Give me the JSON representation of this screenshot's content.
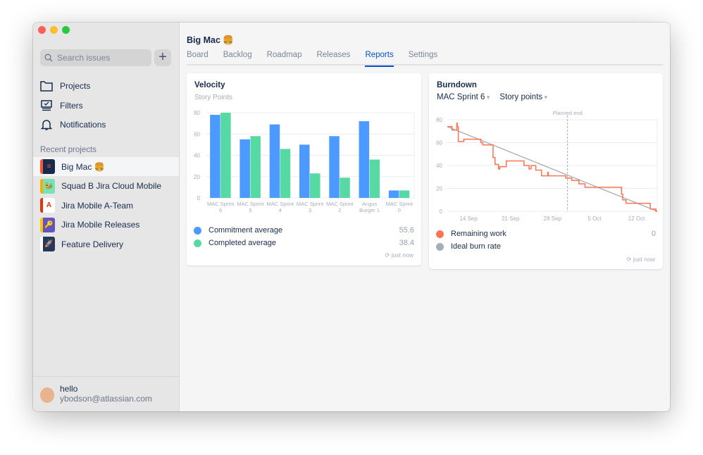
{
  "sidebar": {
    "search_placeholder": "Search issues",
    "add_label": "+",
    "nav": [
      {
        "label": "Projects",
        "icon": "folder-icon"
      },
      {
        "label": "Filters",
        "icon": "filter-monitor-icon"
      },
      {
        "label": "Notifications",
        "icon": "bell-icon"
      }
    ],
    "recent_title": "Recent projects",
    "projects": [
      {
        "label": "Big Mac 🍔",
        "color": "#172b4d",
        "accent": "#ff5630",
        "glyph": "≡"
      },
      {
        "label": "Squad B Jira Cloud Mobile",
        "color": "#79e2b2",
        "accent": "#ffab00",
        "glyph": "🐝"
      },
      {
        "label": "Jira Mobile A-Team",
        "color": "#ffffff",
        "accent": "#de350b",
        "glyph": "A"
      },
      {
        "label": "Jira Mobile Releases",
        "color": "#6554c0",
        "accent": "#ffc400",
        "glyph": "🔑"
      },
      {
        "label": "Feature Delivery",
        "color": "#253858",
        "accent": "#ffffff",
        "glyph": "🚀"
      }
    ],
    "user": {
      "name": "hello",
      "email": "ybodson@atlassian.com"
    }
  },
  "main": {
    "title": "Big Mac 🍔",
    "tabs": [
      "Board",
      "Backlog",
      "Roadmap",
      "Releases",
      "Reports",
      "Settings"
    ],
    "active_tab": "Reports"
  },
  "velocity": {
    "title": "Velocity",
    "subtitle": "Story Points",
    "legend": [
      {
        "label": "Commitment average",
        "value": "55.6",
        "color": "#4c9aff"
      },
      {
        "label": "Completed average",
        "value": "38.4",
        "color": "#57d9a3"
      }
    ],
    "updated": "just now"
  },
  "burndown": {
    "title": "Burndown",
    "sprint": "MAC Sprint 6",
    "unit": "Story points",
    "legend": [
      {
        "label": "Remaining work",
        "value": "0",
        "color": "#ff7452"
      },
      {
        "label": "Ideal burn rate",
        "value": "",
        "color": "#a5adba"
      }
    ],
    "updated": "just now"
  },
  "chart_data": [
    {
      "type": "bar",
      "title": "Velocity",
      "ylabel": "Story Points",
      "ylim": [
        0,
        80
      ],
      "yticks": [
        0,
        20,
        40,
        60,
        80
      ],
      "grid": true,
      "categories": [
        [
          "MAC Sprint",
          "6"
        ],
        [
          "MAC Sprint",
          "5"
        ],
        [
          "MAC Sprint",
          "4"
        ],
        [
          "MAC Sprint",
          "3"
        ],
        [
          "MAC Sprint",
          "2"
        ],
        [
          "Angus",
          "Burger 1"
        ],
        [
          "MAC Sprint",
          "0"
        ]
      ],
      "series": [
        {
          "name": "Commitment",
          "color": "#4c9aff",
          "values": [
            78,
            55,
            69,
            50,
            58,
            72,
            7
          ]
        },
        {
          "name": "Completed",
          "color": "#57d9a3",
          "values": [
            80,
            58,
            46,
            23,
            19,
            36,
            7
          ]
        }
      ]
    },
    {
      "type": "line",
      "title": "Burndown",
      "ylim": [
        0,
        80
      ],
      "yticks": [
        0,
        20,
        40,
        60,
        80
      ],
      "grid": true,
      "xlim": [
        "10 Sep 11:00",
        "15 Oct 11:00"
      ],
      "xticks": [
        "14 Sep",
        "21 Sep",
        "28 Sep",
        "5 Oct",
        "12 Oct"
      ],
      "annotation": {
        "label": "Planned end",
        "x": "30 Sep 12:00"
      },
      "series": [
        {
          "name": "Remaining work",
          "color": "#ff7452",
          "step": true,
          "points": [
            [
              "10 Sep 11:00",
              74
            ],
            [
              "11 Sep 06:00",
              71
            ],
            [
              "12 Sep 01:00",
              77
            ],
            [
              "12 Sep 03:00",
              74
            ],
            [
              "12 Sep 07:00",
              61
            ],
            [
              "13 Sep 05:00",
              63
            ],
            [
              "16 Sep 01:00",
              60
            ],
            [
              "16 Sep 09:00",
              58
            ],
            [
              "18 Sep 02:00",
              47
            ],
            [
              "18 Sep 10:00",
              41
            ],
            [
              "19 Sep 00:00",
              37
            ],
            [
              "19 Sep 05:00",
              39
            ],
            [
              "20 Sep 07:00",
              44
            ],
            [
              "23 Sep 06:00",
              40
            ],
            [
              "24 Sep 02:00",
              37
            ],
            [
              "24 Sep 10:00",
              40
            ],
            [
              "25 Sep 05:00",
              36
            ],
            [
              "26 Sep 04:00",
              31
            ],
            [
              "27 Sep 05:00",
              34
            ],
            [
              "27 Sep 07:00",
              31
            ],
            [
              "30 Sep 05:00",
              29
            ],
            [
              "1 Oct 05:00",
              27
            ],
            [
              "2 Oct 10:00",
              24
            ],
            [
              "3 Oct 10:00",
              21
            ],
            [
              "9 Oct 12:00",
              15
            ],
            [
              "9 Oct 17:00",
              10
            ],
            [
              "10 Oct 06:00",
              7
            ],
            [
              "14 Oct 07:00",
              2
            ],
            [
              "15 Oct 06:00",
              0
            ],
            [
              "15 Oct 11:00",
              0
            ]
          ]
        },
        {
          "name": "Ideal burn rate",
          "color": "#a5adba",
          "points": [
            [
              "10 Sep 11:00",
              74
            ],
            [
              "15 Oct 11:00",
              0
            ]
          ]
        }
      ]
    }
  ]
}
